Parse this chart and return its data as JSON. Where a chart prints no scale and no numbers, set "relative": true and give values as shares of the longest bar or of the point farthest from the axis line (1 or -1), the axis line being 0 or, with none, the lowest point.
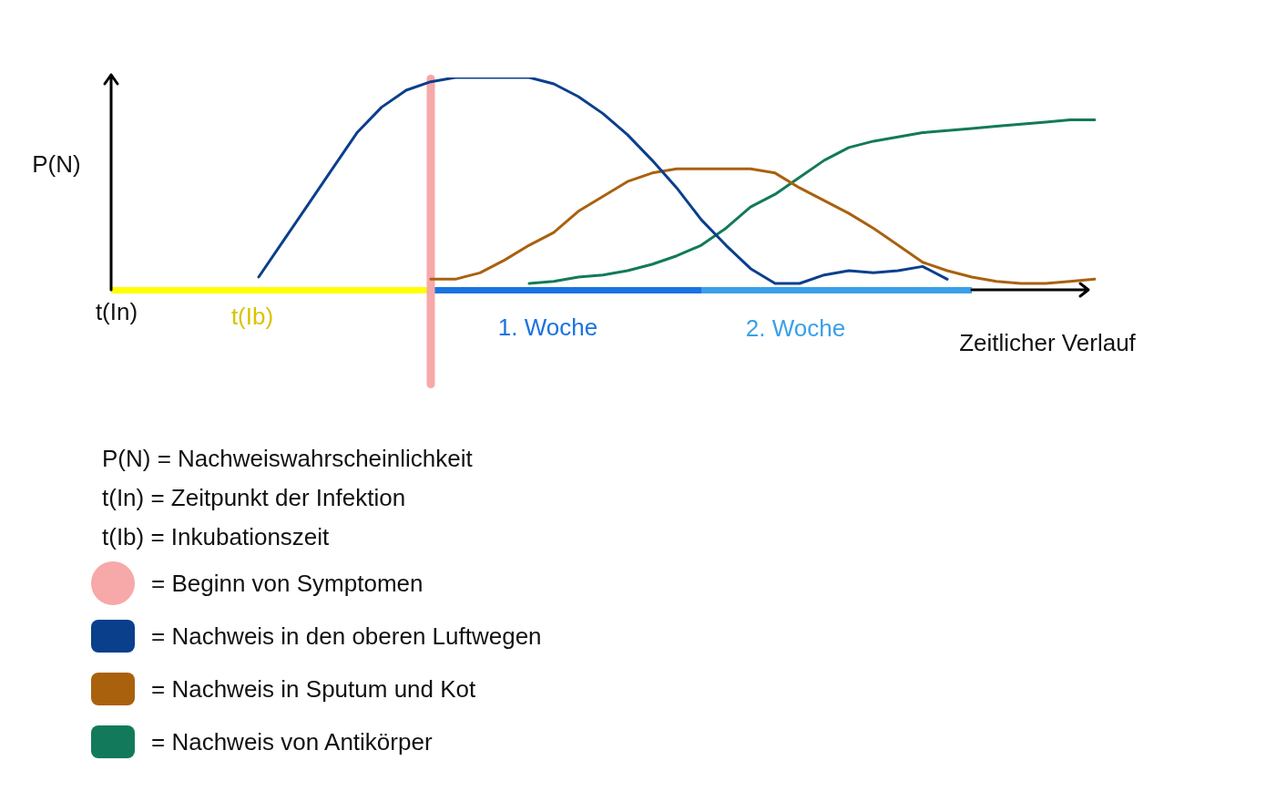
{
  "chart_data": {
    "type": "line",
    "relative": true,
    "ylabel": "P(N)",
    "xlabel": "Zeitlicher Verlauf",
    "categories": [
      null,
      null,
      null,
      null,
      null,
      null,
      null,
      null,
      null,
      null,
      null,
      null,
      null,
      null,
      null,
      null,
      null,
      null,
      null,
      null,
      null,
      null,
      null,
      null,
      null,
      null,
      null,
      null,
      null,
      null,
      null,
      null,
      null,
      null,
      null,
      null,
      null,
      null,
      null,
      null,
      null
    ],
    "series": [
      {
        "name": "= Nachweis in den oberen Luftwegen",
        "color": "#0a3f8c",
        "values": [
          null,
          null,
          null,
          null,
          null,
          null,
          0.06,
          0.23,
          0.4,
          0.57,
          0.74,
          0.86,
          0.94,
          0.98,
          1.0,
          1.0,
          1.0,
          1.0,
          0.97,
          0.91,
          0.83,
          0.73,
          0.61,
          0.48,
          0.33,
          0.21,
          0.1,
          0.03,
          0.03,
          0.07,
          0.09,
          0.08,
          0.09,
          0.11,
          0.05,
          null,
          null,
          null,
          null,
          null,
          null
        ]
      },
      {
        "name": "= Nachweis in Sputum und Kot",
        "color": "#a9610e",
        "values": [
          null,
          null,
          null,
          null,
          null,
          null,
          null,
          null,
          null,
          null,
          null,
          null,
          null,
          0.05,
          0.05,
          0.08,
          0.14,
          0.21,
          0.27,
          0.37,
          0.44,
          0.51,
          0.55,
          0.57,
          0.57,
          0.57,
          0.57,
          0.55,
          0.48,
          0.42,
          0.36,
          0.29,
          0.21,
          0.13,
          0.09,
          0.06,
          0.04,
          0.03,
          0.03,
          0.04,
          0.05
        ]
      },
      {
        "name": "= Nachweis von Antikörper",
        "color": "#127a5a",
        "values": [
          null,
          null,
          null,
          null,
          null,
          null,
          null,
          null,
          null,
          null,
          null,
          null,
          null,
          null,
          null,
          null,
          null,
          0.03,
          0.04,
          0.06,
          0.07,
          0.09,
          0.12,
          0.16,
          0.21,
          0.29,
          0.39,
          0.45,
          0.53,
          0.61,
          0.67,
          0.7,
          0.72,
          0.74,
          0.75,
          0.76,
          0.77,
          0.78,
          0.79,
          0.8,
          0.8
        ]
      }
    ],
    "annotations": [
      "t(In)",
      "t(Ib)",
      "1. Woche",
      "2. Woche",
      "P(N) = Nachweiswahrscheinlichkeit",
      "t(In) = Zeitpunkt der Infektion",
      "t(Ib) = Inkubationszeit",
      "= Beginn von Symptomen"
    ],
    "legend": "bottom",
    "marker": "none",
    "line_style": "solid"
  }
}
